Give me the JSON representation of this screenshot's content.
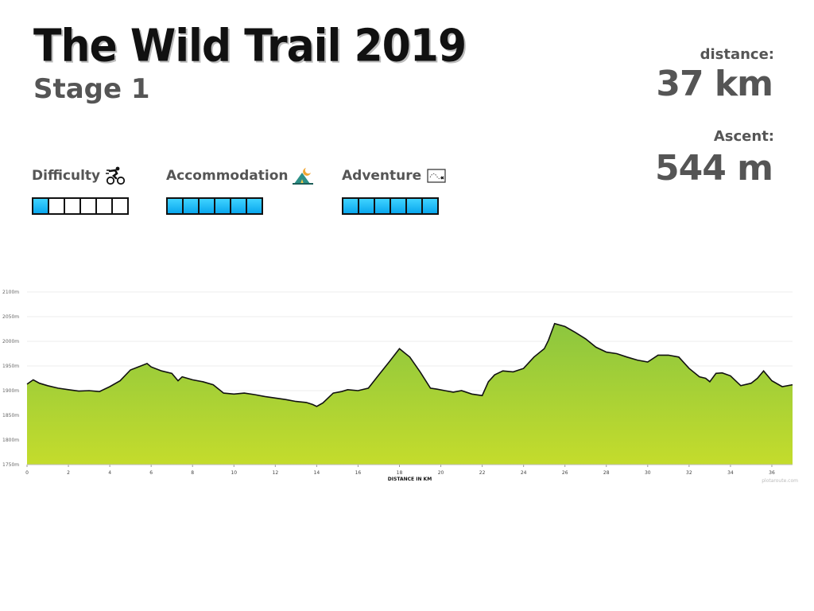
{
  "header": {
    "title": "The Wild Trail 2019",
    "stage": "Stage 1"
  },
  "stats": {
    "distance_label": "distance:",
    "distance_value": "37 km",
    "ascent_label": "Ascent:",
    "ascent_value": "544 m"
  },
  "ratings": [
    {
      "label": "Difficulty",
      "icon": "cyclist-icon",
      "filled": 1,
      "total": 6
    },
    {
      "label": "Accommodation",
      "icon": "tent-moon-icon",
      "filled": 6,
      "total": 6
    },
    {
      "label": "Adventure",
      "icon": "treasure-map-icon",
      "filled": 6,
      "total": 6
    }
  ],
  "colors": {
    "rating_fill": "#17b5f5",
    "area_top": "#8cc63f",
    "area_bottom": "#c4dc2c",
    "line": "#111111"
  },
  "credit": "plotaroute.com",
  "chart_data": {
    "type": "area",
    "xlabel": "DISTANCE IN KM",
    "ylabel": "",
    "xlim": [
      0,
      37
    ],
    "ylim": [
      1750,
      2100
    ],
    "xticks": [
      0,
      2,
      4,
      6,
      8,
      10,
      12,
      14,
      16,
      18,
      20,
      22,
      24,
      26,
      28,
      30,
      32,
      34,
      36
    ],
    "yticks": [
      1750,
      1800,
      1850,
      1900,
      1950,
      2000,
      2050,
      2100
    ],
    "ytick_labels": [
      "1750m",
      "1800m",
      "1850m",
      "1900m",
      "1950m",
      "2000m",
      "2050m",
      "2100m"
    ],
    "grid": true,
    "x": [
      0,
      0.3,
      0.6,
      1.0,
      1.5,
      2.0,
      2.5,
      3.0,
      3.5,
      4.0,
      4.5,
      5.0,
      5.5,
      5.8,
      6.0,
      6.5,
      7.0,
      7.3,
      7.5,
      8.0,
      8.5,
      9.0,
      9.5,
      10.0,
      10.5,
      11.0,
      11.5,
      12.0,
      12.5,
      13.0,
      13.5,
      13.8,
      14.0,
      14.3,
      14.8,
      15.2,
      15.5,
      16.0,
      16.5,
      17.0,
      17.5,
      18.0,
      18.5,
      19.0,
      19.5,
      19.8,
      20.2,
      20.6,
      21.0,
      21.5,
      22.0,
      22.3,
      22.6,
      23.0,
      23.5,
      24.0,
      24.5,
      25.0,
      25.2,
      25.5,
      26.0,
      26.5,
      27.0,
      27.5,
      28.0,
      28.5,
      29.0,
      29.5,
      30.0,
      30.5,
      31.0,
      31.5,
      32.0,
      32.5,
      32.8,
      33.0,
      33.3,
      33.6,
      34.0,
      34.5,
      35.0,
      35.3,
      35.6,
      36.0,
      36.5,
      37.0
    ],
    "y": [
      1913,
      1922,
      1915,
      1910,
      1905,
      1902,
      1899,
      1900,
      1898,
      1908,
      1920,
      1942,
      1950,
      1955,
      1948,
      1940,
      1935,
      1920,
      1928,
      1922,
      1918,
      1912,
      1895,
      1893,
      1895,
      1892,
      1888,
      1885,
      1882,
      1878,
      1876,
      1872,
      1868,
      1875,
      1895,
      1898,
      1902,
      1900,
      1905,
      1932,
      1958,
      1985,
      1968,
      1938,
      1905,
      1903,
      1900,
      1897,
      1900,
      1893,
      1890,
      1918,
      1932,
      1940,
      1938,
      1945,
      1968,
      1985,
      2002,
      2036,
      2030,
      2018,
      2005,
      1988,
      1978,
      1975,
      1968,
      1962,
      1958,
      1972,
      1972,
      1968,
      1945,
      1928,
      1925,
      1918,
      1935,
      1936,
      1930,
      1910,
      1915,
      1925,
      1940,
      1920,
      1908,
      1912
    ]
  }
}
